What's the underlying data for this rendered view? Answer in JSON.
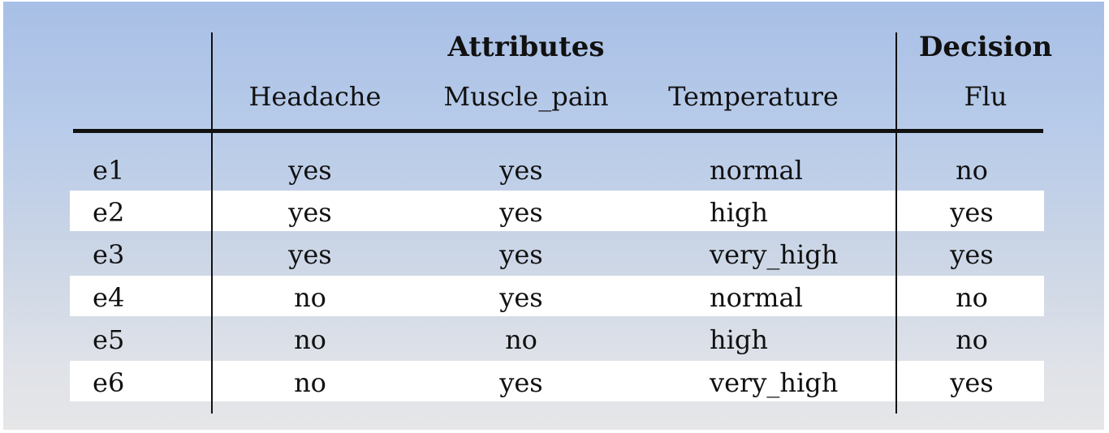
{
  "headers": {
    "attributes_group": "Attributes",
    "decision_group": "Decision",
    "columns": [
      "Headache",
      "Muscle_pain",
      "Temperature",
      "Flu"
    ]
  },
  "rows": [
    {
      "id": "e1",
      "headache": "yes",
      "muscle_pain": "yes",
      "temperature": "normal",
      "flu": "no"
    },
    {
      "id": "e2",
      "headache": "yes",
      "muscle_pain": "yes",
      "temperature": "high",
      "flu": "yes"
    },
    {
      "id": "e3",
      "headache": "yes",
      "muscle_pain": "yes",
      "temperature": "very_high",
      "flu": "yes"
    },
    {
      "id": "e4",
      "headache": "no",
      "muscle_pain": "yes",
      "temperature": "normal",
      "flu": "no"
    },
    {
      "id": "e5",
      "headache": "no",
      "muscle_pain": "no",
      "temperature": "high",
      "flu": "no"
    },
    {
      "id": "e6",
      "headache": "no",
      "muscle_pain": "yes",
      "temperature": "very_high",
      "flu": "yes"
    }
  ],
  "colors": {
    "background_top": "#a8bfe6",
    "background_bottom": "#e6e6e8",
    "stripe": "#ffffff",
    "text": "#111111"
  }
}
